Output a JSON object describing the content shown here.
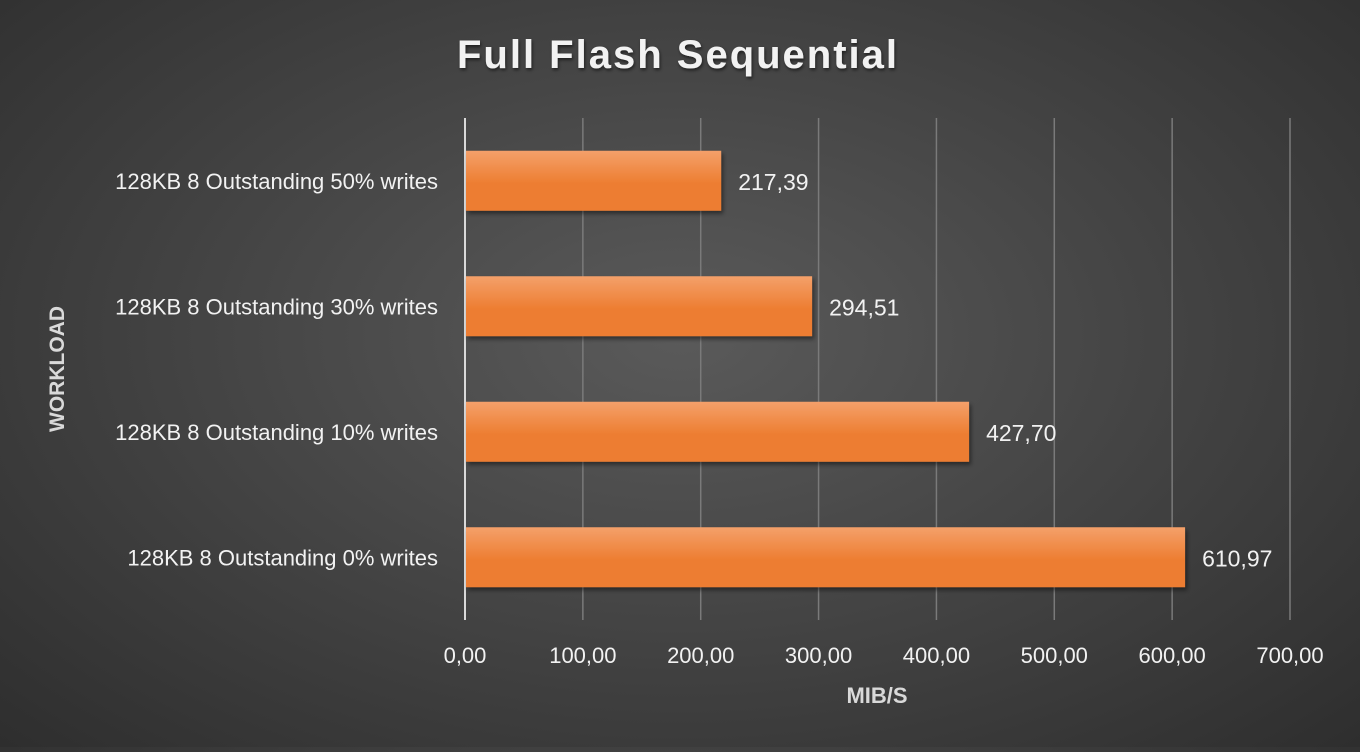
{
  "chart_data": {
    "type": "bar",
    "orientation": "horizontal",
    "title": "Full Flash Sequential",
    "xlabel": "MIB/S",
    "ylabel": "WORKLOAD",
    "categories": [
      "128KB 8 Outstanding 50% writes",
      "128KB 8 Outstanding 30% writes",
      "128KB 8 Outstanding 10% writes",
      "128KB 8 Outstanding 0% writes"
    ],
    "values": [
      217.39,
      294.51,
      427.7,
      610.97
    ],
    "data_labels": [
      "217,39",
      "294,51",
      "427,70",
      "610,97"
    ],
    "xlim": [
      0,
      700
    ],
    "x_ticks": [
      0,
      100,
      200,
      300,
      400,
      500,
      600,
      700
    ],
    "x_tick_labels": [
      "0,00",
      "100,00",
      "200,00",
      "300,00",
      "400,00",
      "500,00",
      "600,00",
      "700,00"
    ],
    "grid": true,
    "legend": "none",
    "colors": {
      "bar": "#ed7d31",
      "bar_light": "#f4a06a",
      "text": "#f2f2f2",
      "gridline": "#7a7a7a",
      "axis": "#d9d9d9"
    }
  }
}
